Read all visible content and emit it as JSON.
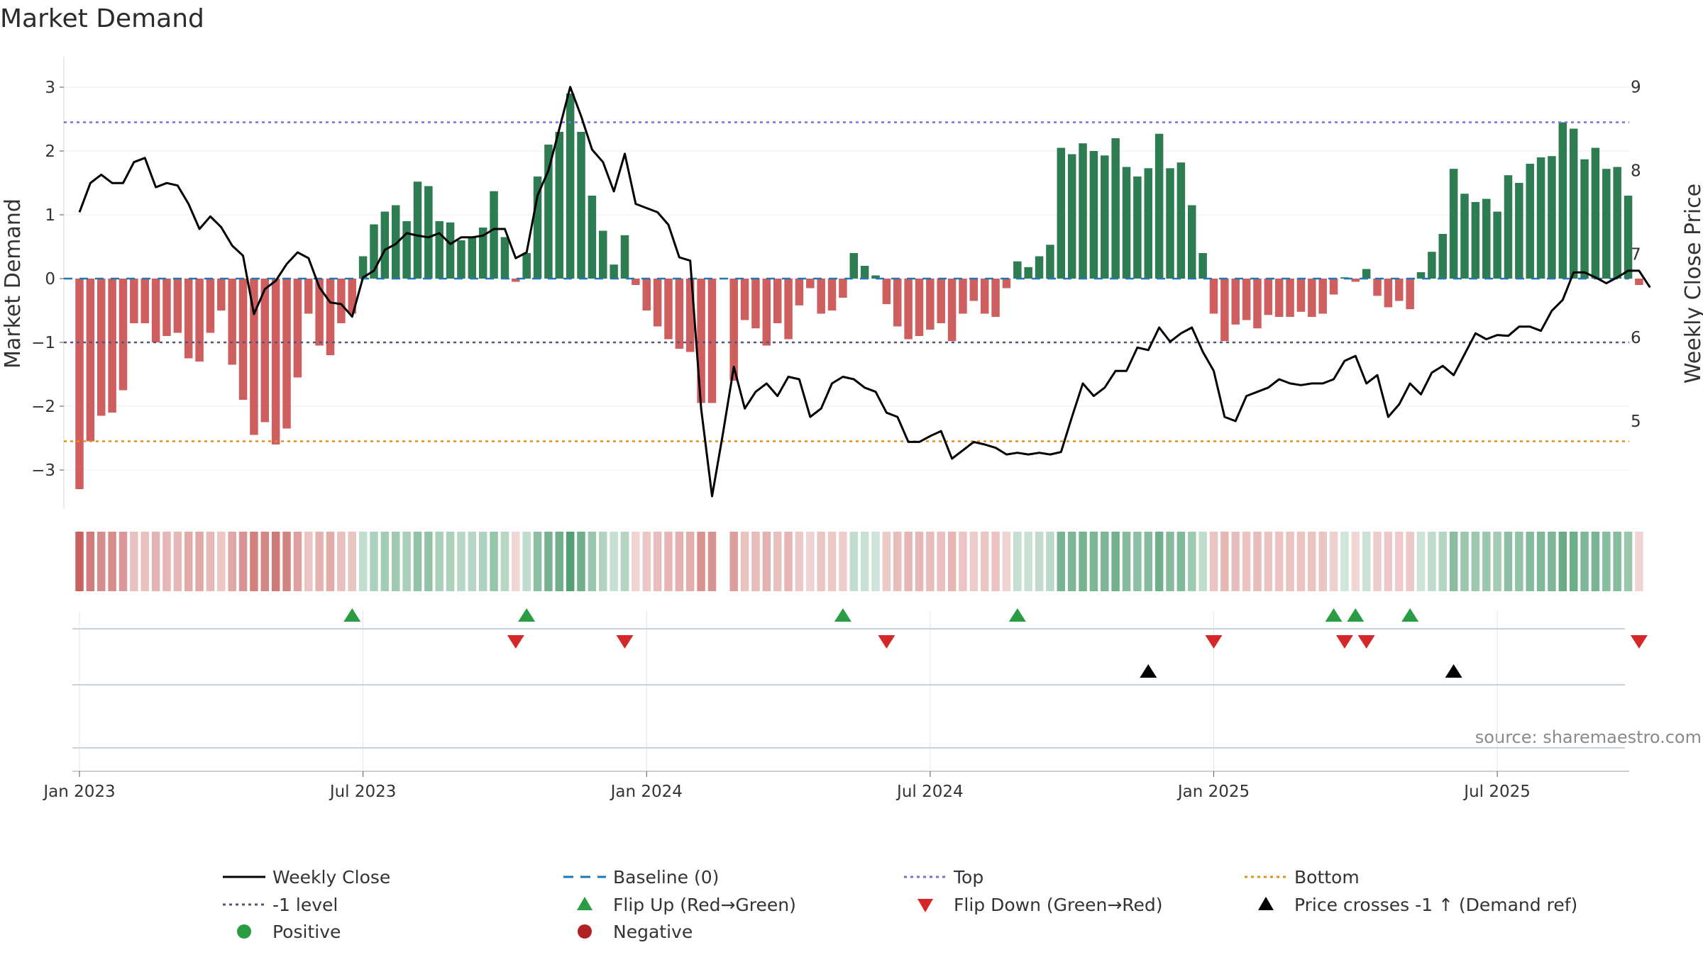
{
  "chart_data": {
    "type": "bar",
    "title": "Market Demand",
    "ylabel": "Market Demand",
    "y2label": "Weekly Close Price",
    "source": "source: sharemaestro.com",
    "ylim": [
      -3.6,
      3.6
    ],
    "y2lim": [
      4.1,
      9.15
    ],
    "yticks": [
      3,
      2,
      1,
      0,
      -1,
      -2,
      -3
    ],
    "ytick_labels": [
      "3",
      "2",
      "1",
      "0",
      "−1",
      "−2",
      "−3"
    ],
    "y2ticks": [
      9,
      8,
      7,
      6,
      5
    ],
    "y2tick_labels": [
      "9",
      "8",
      "7",
      "6",
      "5"
    ],
    "xticks": [
      {
        "week": 0,
        "label": "Jan 2023"
      },
      {
        "week": 26,
        "label": "Jul 2023"
      },
      {
        "week": 52,
        "label": "Jan 2024"
      },
      {
        "week": 78,
        "label": "Jul 2024"
      },
      {
        "week": 104,
        "label": "Jan 2025"
      },
      {
        "week": 130,
        "label": "Jul 2025"
      }
    ],
    "levels": {
      "top": 2.45,
      "minus_one": -1,
      "bottom": -2.55,
      "baseline": 0
    },
    "demand": [
      -3.3,
      -2.55,
      -2.15,
      -2.1,
      -1.75,
      -0.7,
      -0.7,
      -1.0,
      -0.9,
      -0.85,
      -1.25,
      -1.3,
      -0.85,
      -0.5,
      -1.35,
      -1.9,
      -2.45,
      -2.25,
      -2.6,
      -2.35,
      -1.55,
      -0.55,
      -1.05,
      -1.2,
      -0.7,
      -0.55,
      0.35,
      0.85,
      1.05,
      1.15,
      0.9,
      1.52,
      1.45,
      0.9,
      0.88,
      0.6,
      0.65,
      0.8,
      1.37,
      0.65,
      -0.05,
      0.4,
      1.6,
      2.1,
      2.3,
      2.9,
      2.3,
      1.3,
      0.75,
      0.22,
      0.68,
      -0.1,
      -0.5,
      -0.75,
      -0.95,
      -1.1,
      -1.15,
      -1.95,
      -1.95,
      0,
      -1.6,
      -0.65,
      -0.78,
      -1.05,
      -0.7,
      -0.95,
      -0.42,
      -0.15,
      -0.55,
      -0.5,
      -0.3,
      0.4,
      0.2,
      0.05,
      -0.4,
      -0.75,
      -0.95,
      -0.9,
      -0.8,
      -0.7,
      -0.98,
      -0.55,
      -0.35,
      -0.55,
      -0.6,
      -0.15,
      0.27,
      0.18,
      0.35,
      0.53,
      2.05,
      1.95,
      2.12,
      2.0,
      1.93,
      2.2,
      1.75,
      1.6,
      1.73,
      2.27,
      1.73,
      1.82,
      1.15,
      0.4,
      -0.55,
      -0.98,
      -0.72,
      -0.65,
      -0.78,
      -0.57,
      -0.6,
      -0.6,
      -0.52,
      -0.6,
      -0.55,
      -0.25,
      0.02,
      -0.05,
      0.15,
      -0.27,
      -0.45,
      -0.35,
      -0.48,
      0.1,
      0.42,
      0.7,
      1.72,
      1.33,
      1.2,
      1.25,
      1.05,
      1.62,
      1.5,
      1.8,
      1.9,
      1.92,
      2.45,
      2.35,
      1.87,
      2.05,
      1.72,
      1.75,
      1.3,
      -0.1
    ],
    "price": [
      7.5,
      7.85,
      7.95,
      7.85,
      7.85,
      8.1,
      8.15,
      7.8,
      7.85,
      7.82,
      7.6,
      7.3,
      7.45,
      7.32,
      7.1,
      6.98,
      6.28,
      6.58,
      6.68,
      6.88,
      7.02,
      6.95,
      6.6,
      6.42,
      6.4,
      6.25,
      6.72,
      6.8,
      7.05,
      7.12,
      7.25,
      7.22,
      7.2,
      7.25,
      7.12,
      7.2,
      7.2,
      7.22,
      7.3,
      7.3,
      6.95,
      7.02,
      7.7,
      8.0,
      8.5,
      9.0,
      8.65,
      8.25,
      8.1,
      7.75,
      8.2,
      7.6,
      7.55,
      7.5,
      7.35,
      6.96,
      6.92,
      5.15,
      4.1,
      4.85,
      5.65,
      5.15,
      5.35,
      5.45,
      5.3,
      5.53,
      5.5,
      5.05,
      5.15,
      5.45,
      5.53,
      5.5,
      5.4,
      5.35,
      5.1,
      5.05,
      4.75,
      4.75,
      4.82,
      4.88,
      4.55,
      4.65,
      4.75,
      4.72,
      4.68,
      4.6,
      4.62,
      4.6,
      4.62,
      4.6,
      4.63,
      5.05,
      5.45,
      5.3,
      5.4,
      5.6,
      5.6,
      5.88,
      5.85,
      6.12,
      5.95,
      6.05,
      6.12,
      5.83,
      5.6,
      5.05,
      5.0,
      5.3,
      5.35,
      5.4,
      5.5,
      5.45,
      5.43,
      5.45,
      5.45,
      5.5,
      5.72,
      5.78,
      5.45,
      5.55,
      5.05,
      5.2,
      5.45,
      5.32,
      5.58,
      5.66,
      5.55,
      5.8,
      6.05,
      5.98,
      6.03,
      6.02,
      6.13,
      6.13,
      6.08,
      6.32,
      6.45,
      6.78,
      6.78,
      6.72,
      6.65,
      6.72,
      6.8,
      6.8,
      6.6
    ],
    "flip_up_weeks": [
      25,
      41,
      70,
      86,
      115,
      117,
      122
    ],
    "flip_down_weeks": [
      40,
      50,
      74,
      104,
      116,
      118,
      143
    ],
    "price_cross_weeks": [
      98,
      126
    ],
    "strip": {
      "negative_color": "#c0504d",
      "positive_color": "#2e8b57"
    },
    "colors": {
      "positive_bar": "#2e7d52",
      "negative_bar": "#cf5f5f",
      "price_line": "#000000",
      "baseline": "#1f77b4",
      "top": "#7b6fd6",
      "minus_one": "#555577",
      "bottom": "#e0901a",
      "flip_up": "#2a9d44",
      "flip_down": "#d62728",
      "price_cross": "#000000",
      "positive_dot": "#2a9d44",
      "negative_dot": "#b22222"
    },
    "legend": [
      {
        "label": "Weekly Close",
        "kind": "line",
        "color": "#000000"
      },
      {
        "label": "Baseline (0)",
        "kind": "dash",
        "color": "#1f77b4"
      },
      {
        "label": "Top",
        "kind": "dot",
        "color": "#7b6fd6"
      },
      {
        "label": "Bottom",
        "kind": "dot",
        "color": "#e0901a"
      },
      {
        "label": "-1 level",
        "kind": "dot",
        "color": "#555577"
      },
      {
        "label": "Flip Up (Red→Green)",
        "kind": "tri-up",
        "color": "#2a9d44"
      },
      {
        "label": "Flip Down (Green→Red)",
        "kind": "tri-down",
        "color": "#d62728"
      },
      {
        "label": "Price crosses -1 ↑ (Demand ref)",
        "kind": "tri-up",
        "color": "#000000"
      },
      {
        "label": "Positive",
        "kind": "circle",
        "color": "#2a9d44"
      },
      {
        "label": "Negative",
        "kind": "circle",
        "color": "#b22222"
      }
    ]
  }
}
